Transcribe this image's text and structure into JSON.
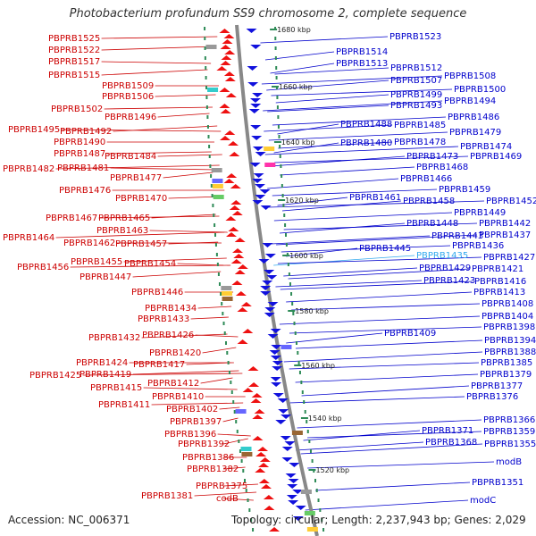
{
  "title": "Photobacterium profundum SS9 chromosome 2, complete sequence",
  "footer": {
    "accession": "Accession: NC_006371",
    "topology": "Topology: circular; Length: 2,237,943 bp; Genes: 2,029"
  },
  "colors": {
    "left_label": "#cc0000",
    "right_label": "#0000cc",
    "highlight_label": "#33aaee",
    "backbone": "#888888",
    "tick": "#2e8b57",
    "reverse_gene": "#ee1111",
    "forward_gene": "#1111dd"
  },
  "scale_labels": [
    "1680 kbp",
    "1660 kbp",
    "1640 kbp",
    "1620 kbp",
    "1600 kbp",
    "1580 kbp",
    "1560 kbp",
    "1540 kbp",
    "1520 kbp"
  ],
  "left_labels": [
    "PBPRB1525",
    "PBPRB1522",
    "PBPRB1517",
    "PBPRB1515",
    "PBPRB1509",
    "PBPRB1506",
    "PBPRB1502",
    "PBPRB1496",
    "PBPRB1495",
    "PBPRB1492",
    "PBPRB1490",
    "PBPRB1487",
    "PBPRB1484",
    "PBPRB1482",
    "PBPRB1481",
    "PBPRB1477",
    "PBPRB1476",
    "PBPRB1470",
    "PBPRB1467",
    "PBPRB1465",
    "PBPRB1463",
    "PBPRB1464",
    "PBPRB1462",
    "PBPRB1457",
    "PBPRB1456",
    "PBPRB1455",
    "PBPRB1454",
    "PBPRB1447",
    "PBPRB1446",
    "PBPRB1434",
    "PBPRB1433",
    "PBPRB1432",
    "PBPRB1426",
    "PBPRB1420",
    "PBPRB1424",
    "PBPRB1417",
    "PBPRB1425",
    "PBPRB1419",
    "PBPRB1415",
    "PBPRB1412",
    "PBPRB1410",
    "PBPRB1411",
    "PBPRB1402",
    "PBPRB1397",
    "PBPRB1396",
    "PBPRB1392",
    "PBPRB1386",
    "PBPRB1382",
    "PBPRB1375",
    "PBPRB1381",
    "codB"
  ],
  "right_labels": [
    "PBPRB1523",
    "PBPRB1514",
    "PBPRB1513",
    "PBPRB1512",
    "PBPRB1508",
    "PBPRB1507",
    "PBPRB1500",
    "PBPRB1499",
    "PBPRB1494",
    "PBPRB1493",
    "PBPRB1486",
    "PBPRB1488",
    "PBPRB1485",
    "PBPRB1479",
    "PBPRB1480",
    "PBPRB1478",
    "PBPRB1474",
    "PBPRB1473",
    "PBPRB1469",
    "PBPRB1468",
    "PBPRB1466",
    "PBPRB1459",
    "PBPRB1461",
    "PBPRB1458",
    "PBPRB1452",
    "PBPRB1449",
    "PBPRB1448",
    "PBPRB1442",
    "PBPRB1443",
    "PBPRB1437",
    "PBPRB1436",
    "PBPRB1445",
    "PBPRB1435",
    "PBPRB1427",
    "PBPRB1429",
    "PBPRB1421",
    "PBPRB1423",
    "PBPRB1416",
    "PBPRB1413",
    "PBPRB1408",
    "PBPRB1404",
    "PBPRB1409",
    "PBPRB1398",
    "PBPRB1394",
    "PBPRB1388",
    "PBPRB1385",
    "PBPRB1379",
    "PBPRB1377",
    "PBPRB1376",
    "PBPRB1366",
    "PBPRB1371",
    "PBPRB1359",
    "PBPRB1368",
    "PBPRB1355",
    "modB",
    "PBPRB1351",
    "modC"
  ],
  "highlighted_label": "PBPRB1435"
}
